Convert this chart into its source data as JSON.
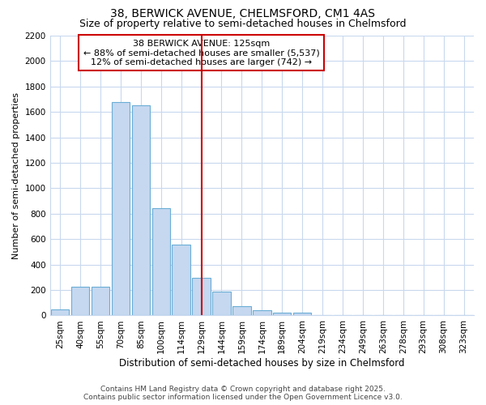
{
  "title": "38, BERWICK AVENUE, CHELMSFORD, CM1 4AS",
  "subtitle": "Size of property relative to semi-detached houses in Chelmsford",
  "xlabel": "Distribution of semi-detached houses by size in Chelmsford",
  "ylabel": "Number of semi-detached properties",
  "bar_labels": [
    "25sqm",
    "40sqm",
    "55sqm",
    "70sqm",
    "85sqm",
    "100sqm",
    "114sqm",
    "129sqm",
    "144sqm",
    "159sqm",
    "174sqm",
    "189sqm",
    "204sqm",
    "219sqm",
    "234sqm",
    "249sqm",
    "263sqm",
    "278sqm",
    "293sqm",
    "308sqm",
    "323sqm"
  ],
  "bar_values": [
    50,
    225,
    225,
    1675,
    1650,
    845,
    560,
    295,
    185,
    75,
    40,
    25,
    20,
    0,
    0,
    0,
    0,
    0,
    0,
    0,
    0
  ],
  "bar_color": "#c5d8f0",
  "bar_edgecolor": "#6aaed6",
  "vline_color": "#cc0000",
  "annotation_title": "38 BERWICK AVENUE: 125sqm",
  "annotation_line1": "← 88% of semi-detached houses are smaller (5,537)",
  "annotation_line2": "12% of semi-detached houses are larger (742) →",
  "annotation_box_color": "#cc0000",
  "ylim": [
    0,
    2200
  ],
  "yticks": [
    0,
    200,
    400,
    600,
    800,
    1000,
    1200,
    1400,
    1600,
    1800,
    2000,
    2200
  ],
  "bg_color": "#ffffff",
  "plot_bg_color": "#ffffff",
  "grid_color": "#c8d8ee",
  "footer_line1": "Contains HM Land Registry data © Crown copyright and database right 2025.",
  "footer_line2": "Contains public sector information licensed under the Open Government Licence v3.0.",
  "title_fontsize": 10,
  "subtitle_fontsize": 9,
  "xlabel_fontsize": 8.5,
  "ylabel_fontsize": 8,
  "tick_fontsize": 7.5,
  "footer_fontsize": 6.5,
  "annotation_fontsize": 8
}
